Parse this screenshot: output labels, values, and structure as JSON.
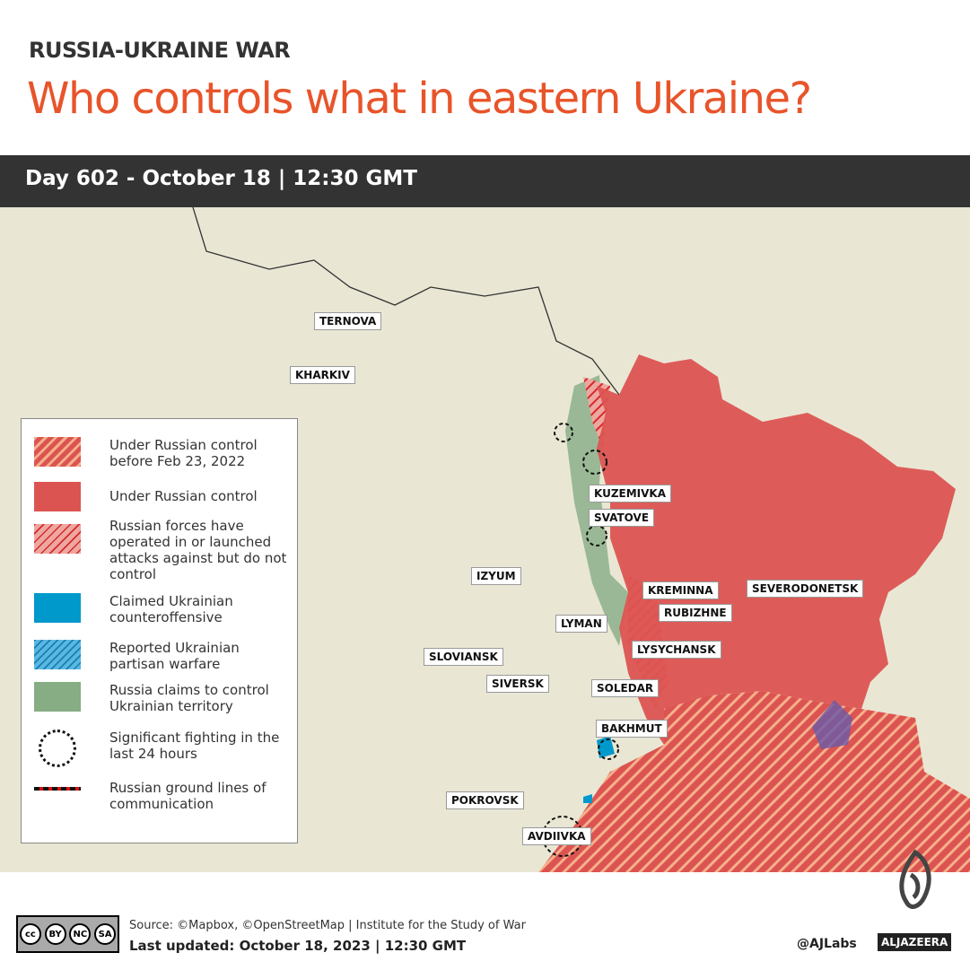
{
  "header": {
    "kicker": "RUSSIA-UKRAINE WAR",
    "title": "Who controls what in eastern Ukraine?",
    "date_bar": "Day 602 - October 18  |  12:30 GMT"
  },
  "colors": {
    "accent": "#e8542a",
    "russian_control": "#dc5452",
    "ukrainian_counteroffensive": "#0099cc",
    "russia_claims": "#86ad84",
    "map_background": "#e9e7d4"
  },
  "map": {
    "labels": [
      "TERNOVA",
      "KHARKIV",
      "KUZEMIVKA",
      "SVATOVE",
      "IZYUM",
      "KREMINNA",
      "SEVERODONETSK",
      "RUBIZHNE",
      "LYMAN",
      "LYSYCHANSK",
      "SLOVIANSK",
      "SIVERSK",
      "SOLEDAR",
      "BAKHMUT",
      "POKROVSK",
      "AVDIIVKA"
    ]
  },
  "legend": {
    "items": [
      {
        "label": "Under Russian control before Feb 23, 2022",
        "icon": "orange-hatch-swatch"
      },
      {
        "label": "Under Russian control",
        "icon": "red-swatch"
      },
      {
        "label": "Russian forces have operated in or launched attacks against but do not control",
        "icon": "red-hatch-swatch"
      },
      {
        "label": "Claimed Ukrainian counteroffensive",
        "icon": "blue-swatch"
      },
      {
        "label": "Reported Ukrainian partisan warfare",
        "icon": "blue-hatch-swatch"
      },
      {
        "label": "Russia claims to control Ukrainian territory",
        "icon": "green-swatch"
      },
      {
        "label": "Significant fighting in the last 24 hours",
        "icon": "dashed-circle"
      },
      {
        "label": "Russian ground lines of communication",
        "icon": "red-black-dashed-line"
      }
    ]
  },
  "footer": {
    "license": "cc-by-nc-sa",
    "license_labels": [
      "BY",
      "NC",
      "SA"
    ],
    "source": "Source: ©Mapbox, ©OpenStreetMap  |  Institute for the Study of War",
    "updated": "Last updated: October 18, 2023  | 12:30 GMT",
    "handle": "@AJLabs",
    "brand": "ALJAZEERA"
  }
}
